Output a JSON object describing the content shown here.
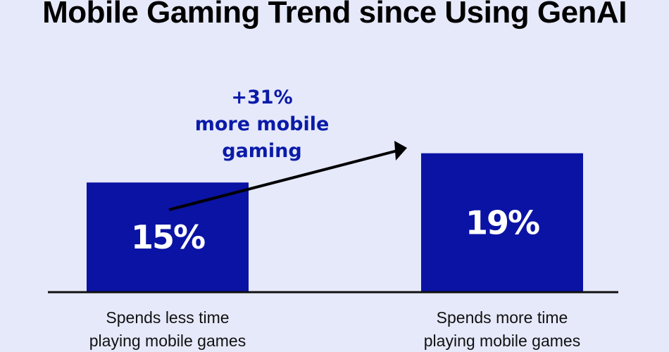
{
  "chart_data": {
    "type": "bar",
    "title": "Mobile Gaming Trend since Using GenAI",
    "categories": [
      [
        "Spends less time",
        "playing mobile games"
      ],
      [
        "Spends more time",
        "playing mobile games"
      ]
    ],
    "values": [
      15,
      19
    ],
    "value_labels": [
      "15%",
      "19%"
    ],
    "unit": "%",
    "ylim": [
      0,
      26
    ],
    "bar_color": "#0a13a3",
    "annotation": {
      "lines": [
        "+31%",
        "more mobile",
        "gaming"
      ],
      "color": "#0a1aa8"
    },
    "grid": false,
    "legend": "none"
  }
}
